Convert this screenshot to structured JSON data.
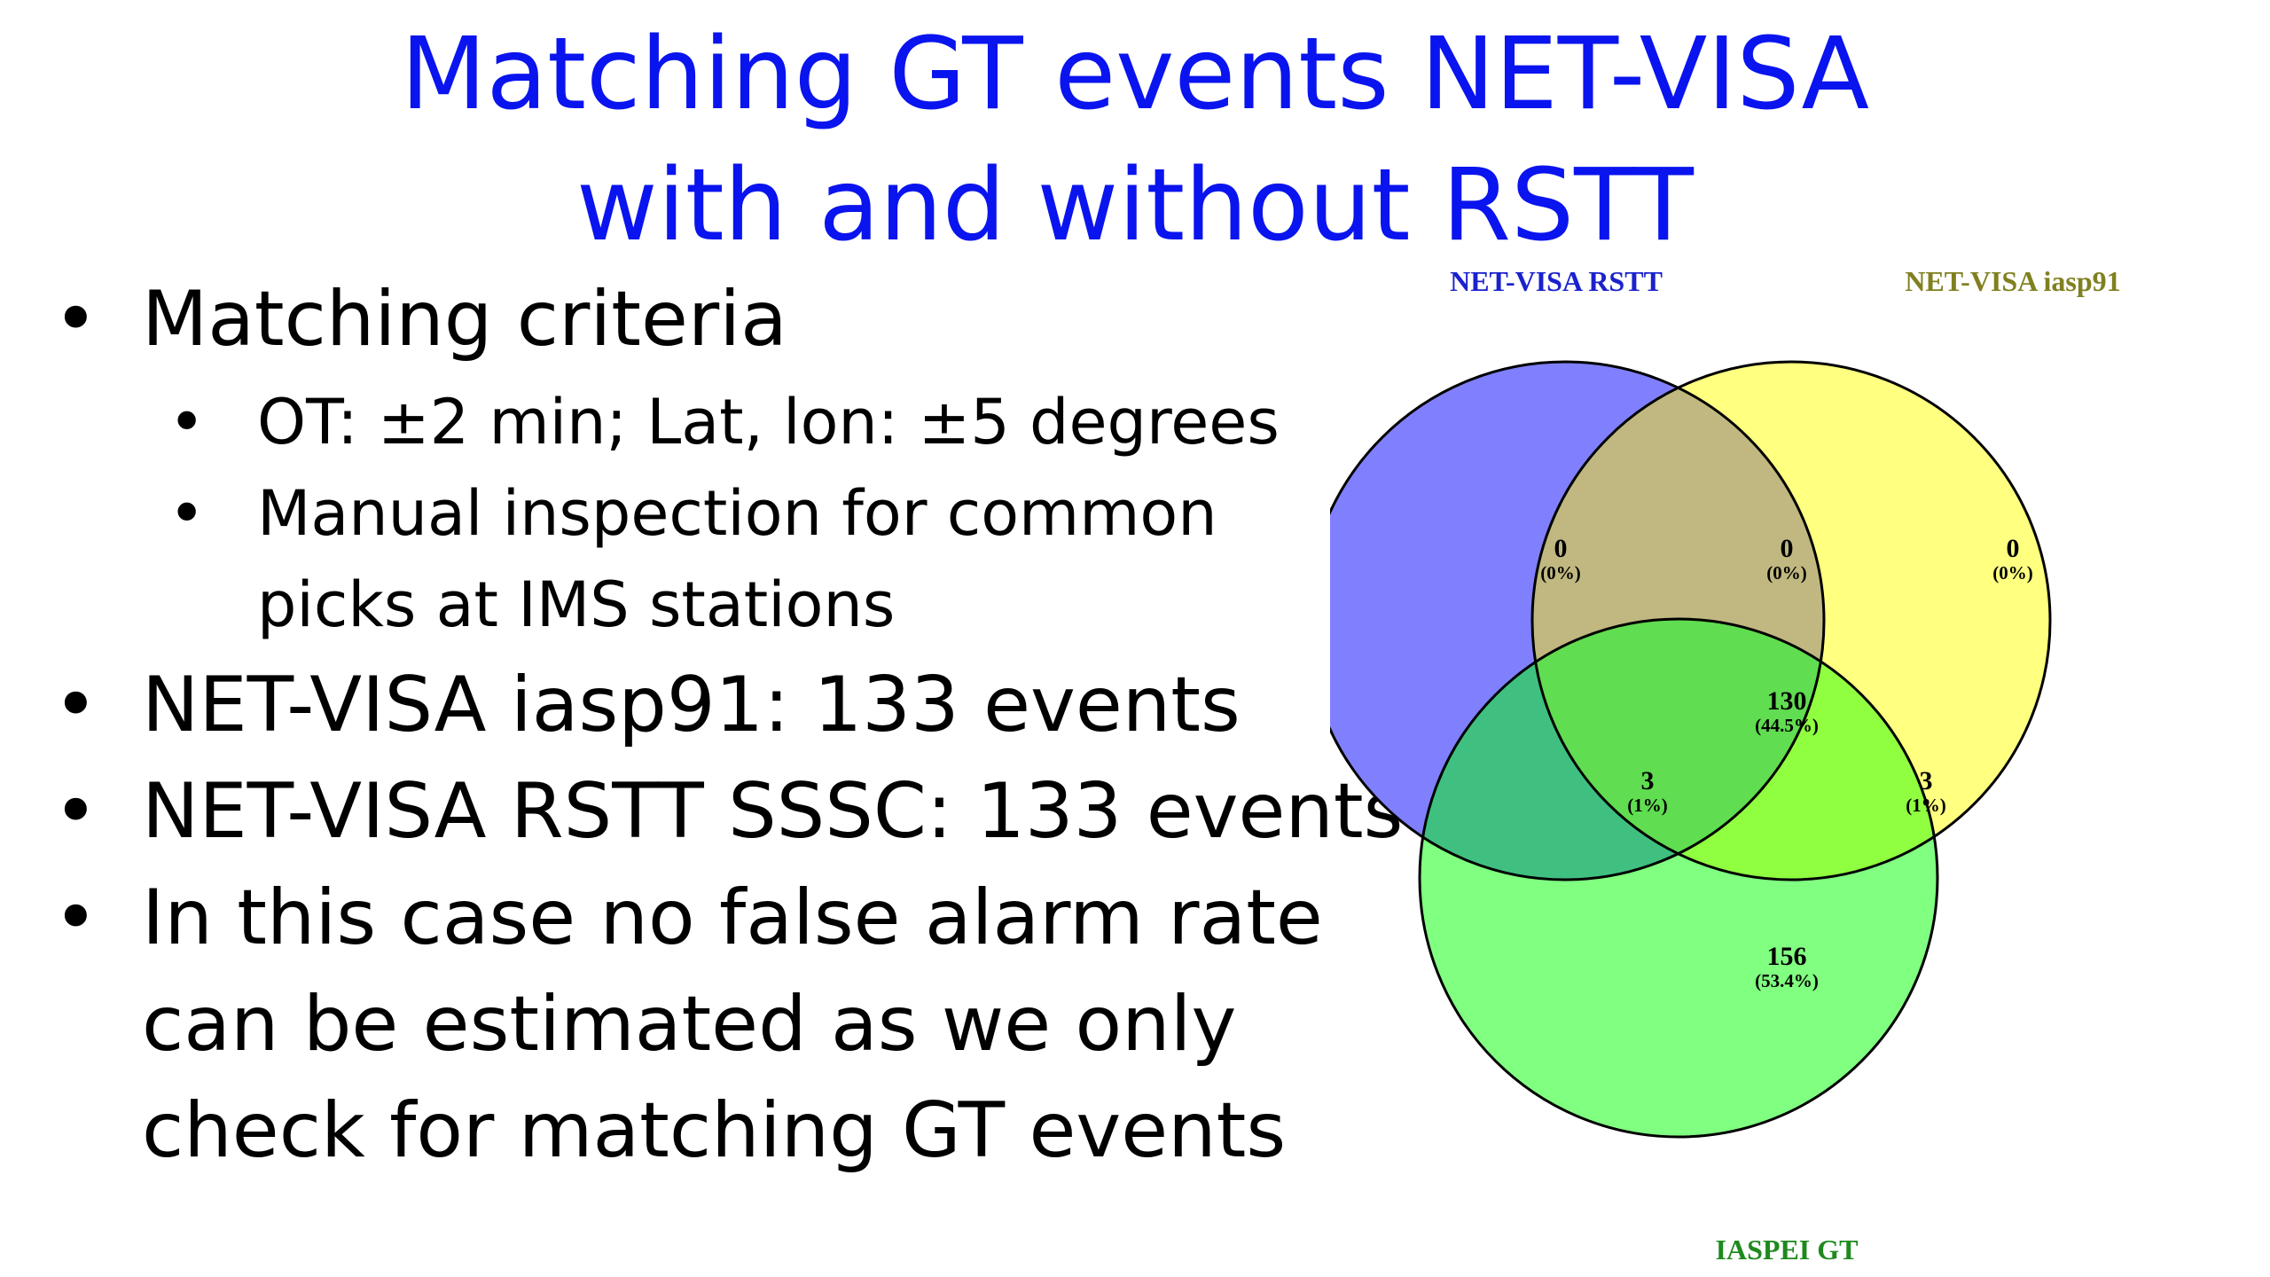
{
  "title": {
    "line1": "Matching GT events NET-VISA",
    "line2": "with and without RSTT"
  },
  "bullets": [
    {
      "marker": "•",
      "lines": [
        "Matching criteria"
      ]
    },
    {
      "marker": "•",
      "lines": [
        "NET-VISA iasp91: 133 events"
      ]
    },
    {
      "marker": "•",
      "lines": [
        "NET-VISA RSTT SSSC: 133 events"
      ]
    },
    {
      "marker": "•",
      "lines": [
        "In this case no false alarm rate",
        "can be estimated as we only",
        "check for matching GT events"
      ]
    }
  ],
  "subbullets": [
    {
      "marker": "•",
      "lines": [
        "OT: ±2 min; Lat, lon: ±5 degrees"
      ]
    },
    {
      "marker": "•",
      "lines": [
        "Manual inspection for common",
        "picks at IMS stations"
      ]
    }
  ],
  "venn": {
    "sets": [
      {
        "name": "NET-VISA RSTT",
        "label_color": "#1a22cc",
        "fill": "#8080ff"
      },
      {
        "name": "NET-VISA iasp91",
        "label_color": "#808020",
        "fill": "#ffff80"
      },
      {
        "name": "IASPEI GT",
        "label_color": "#1e8a1e",
        "fill": "#80ff80"
      }
    ],
    "regions": {
      "rstt_only": {
        "count": "0",
        "percent": "(0%)"
      },
      "rstt_iasp91": {
        "count": "0",
        "percent": "(0%)"
      },
      "iasp91_only": {
        "count": "0",
        "percent": "(0%)"
      },
      "all_three": {
        "count": "130",
        "percent": "(44.5%)"
      },
      "rstt_gt": {
        "count": "3",
        "percent": "(1%)"
      },
      "iasp91_gt": {
        "count": "3",
        "percent": "(1%)"
      },
      "gt_only": {
        "count": "156",
        "percent": "(53.4%)"
      }
    },
    "overlap_colors": {
      "rstt_iasp91": "#c0b880",
      "rstt_gt": "#40c080",
      "iasp91_gt": "#90ff40",
      "all_three": "#60dd50"
    }
  }
}
